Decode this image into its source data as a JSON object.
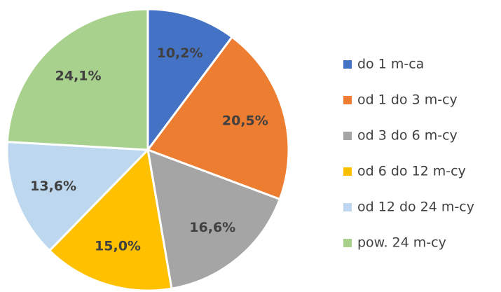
{
  "chart_data": {
    "type": "pie",
    "categories": [
      "do 1 m-ca",
      "od 1 do 3 m-cy",
      "od 3 do 6 m-cy",
      "od 6 do 12 m-cy",
      "od 12 do 24 m-cy",
      "pow. 24 m-cy"
    ],
    "values": [
      10.2,
      20.5,
      16.6,
      15.0,
      13.6,
      24.1
    ],
    "value_labels": [
      "10,2%",
      "20,5%",
      "16,6%",
      "15,0%",
      "13,6%",
      "24,1%"
    ],
    "colors": [
      "#4472c4",
      "#ed7d31",
      "#a5a5a5",
      "#ffc000",
      "#bdd7ee",
      "#a9d18e"
    ],
    "legend": "right"
  }
}
